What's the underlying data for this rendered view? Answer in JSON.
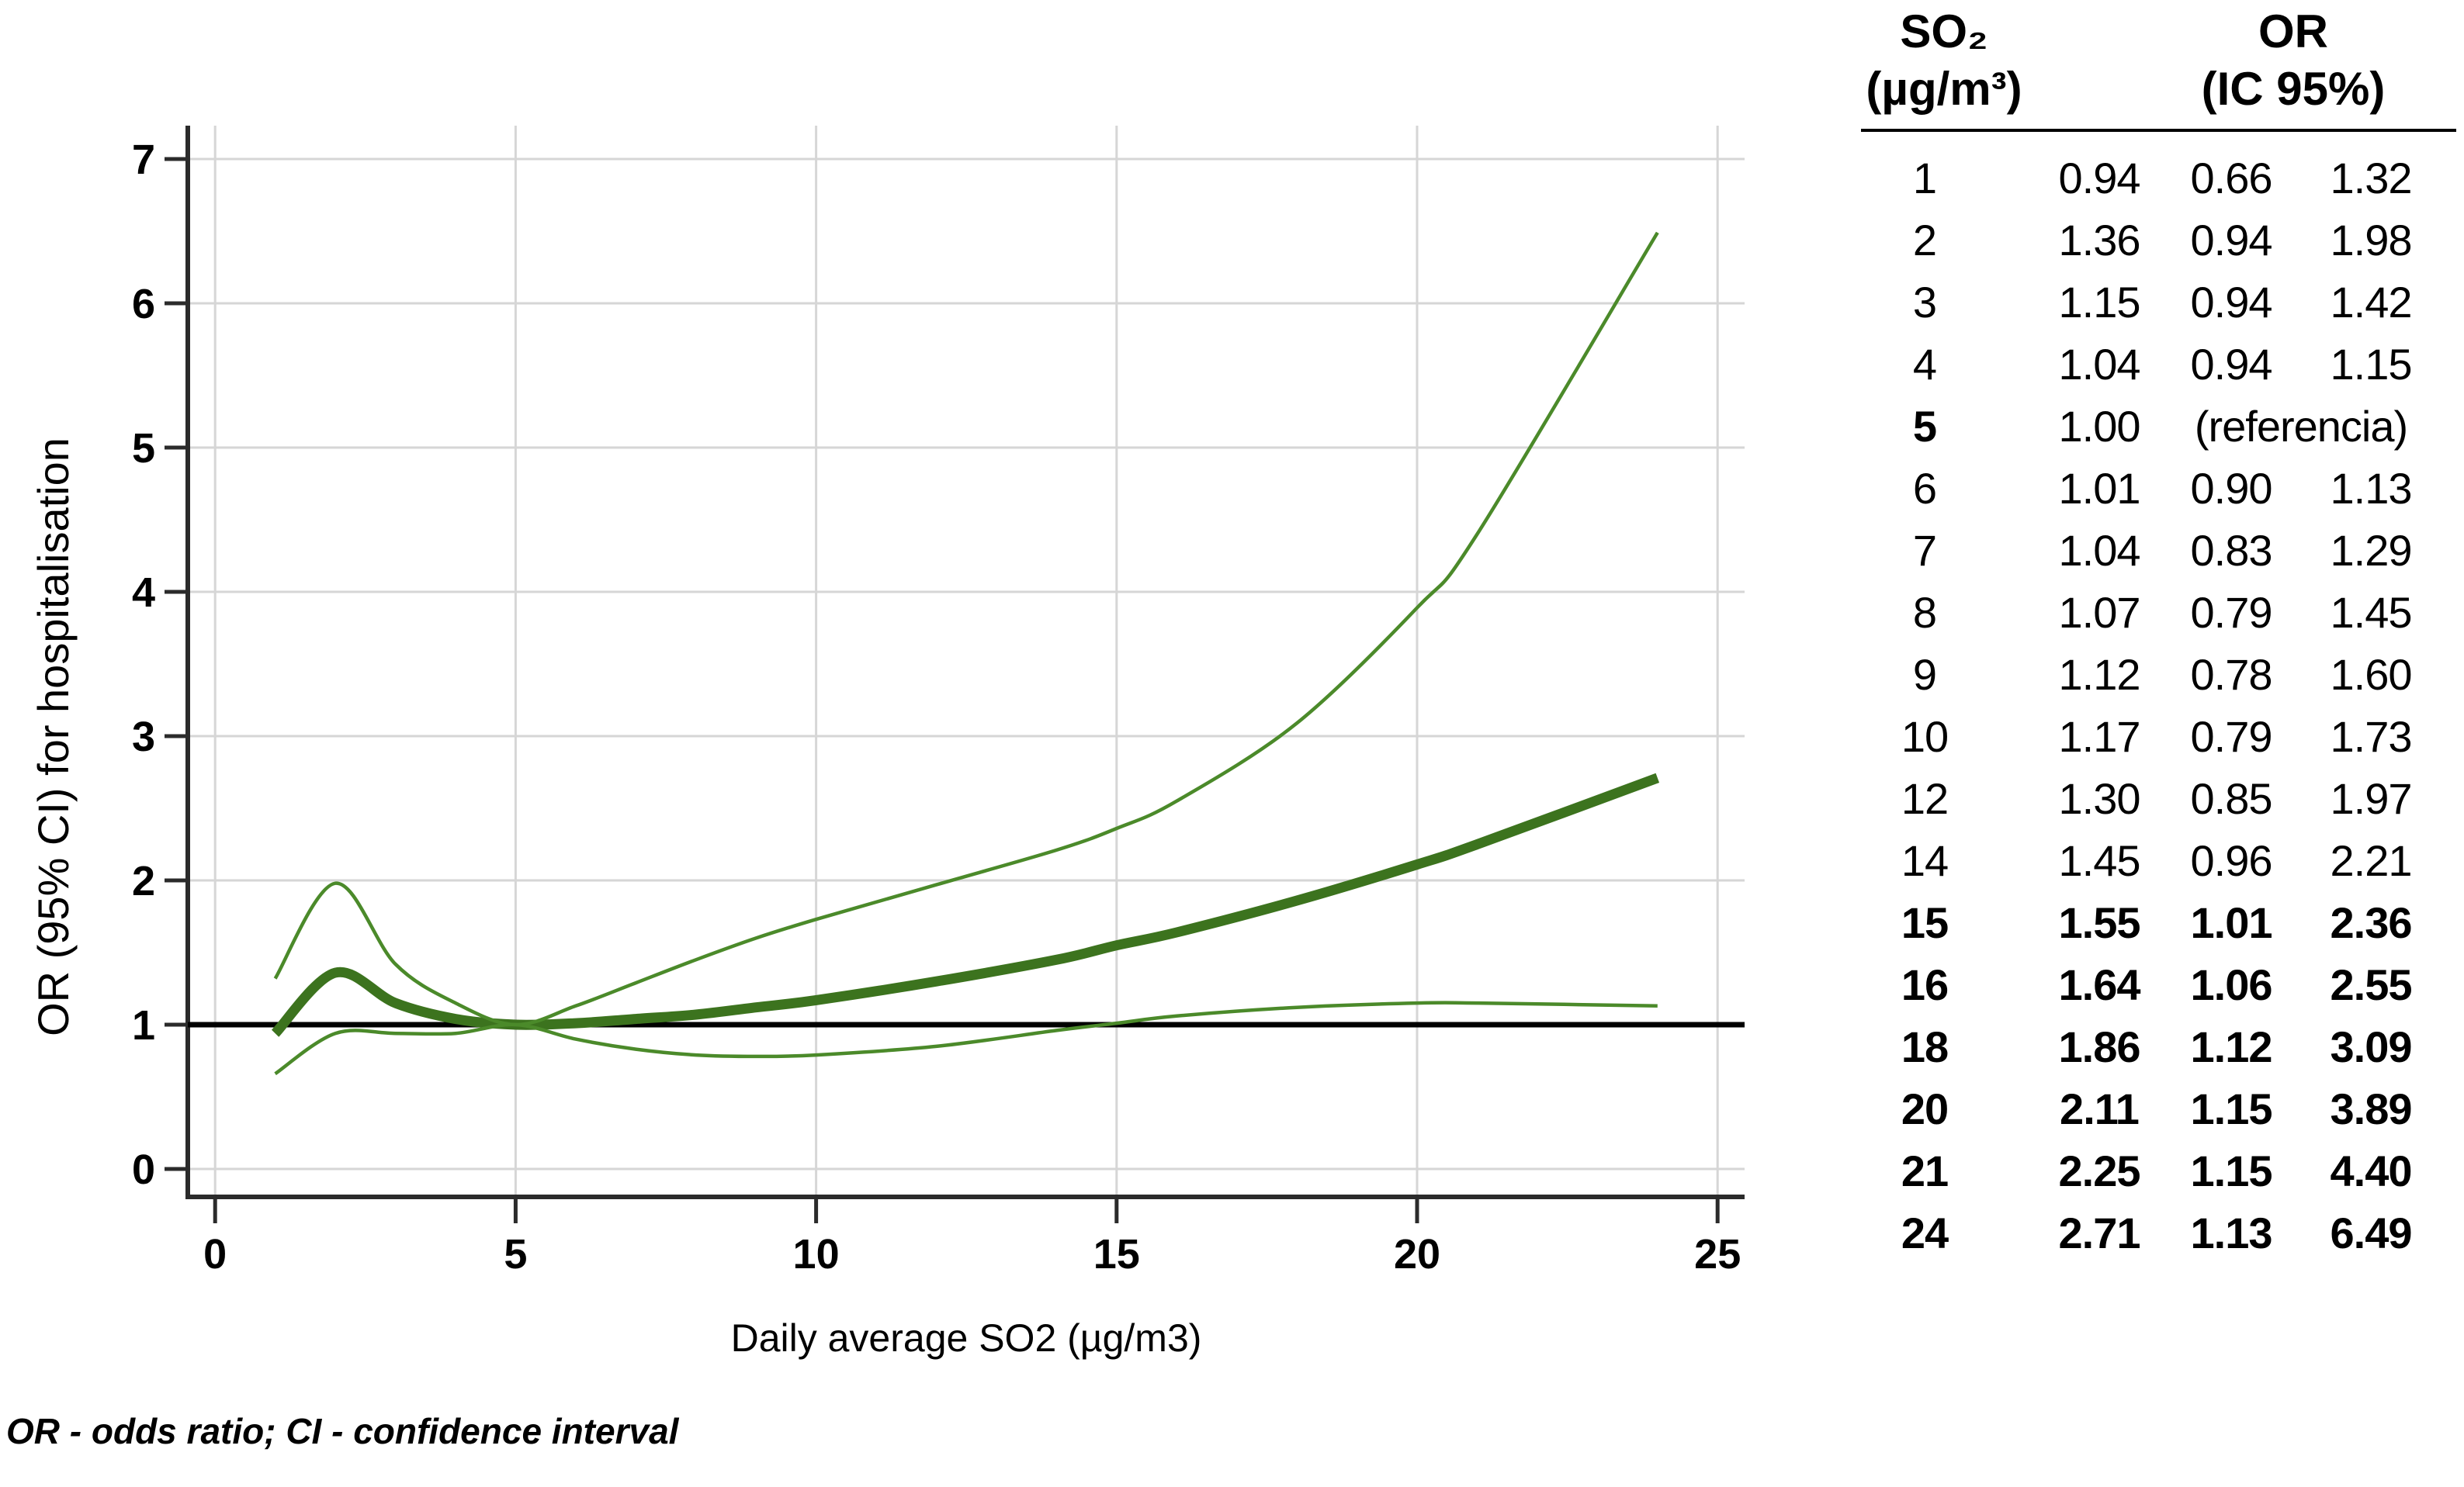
{
  "figure": {
    "footnote": "OR - odds ratio; CI - confidence interval"
  },
  "chart_data": {
    "type": "line",
    "title": "",
    "xlabel": "Daily average SO2 (µg/m3)",
    "ylabel": "OR (95% CI) for hospitalisation",
    "xlim": [
      0,
      25
    ],
    "ylim": [
      0,
      7
    ],
    "x_ticks": [
      0,
      5,
      10,
      15,
      20,
      25
    ],
    "y_ticks": [
      0,
      1,
      2,
      3,
      4,
      5,
      6,
      7
    ],
    "grid": true,
    "reference_line_y": 1,
    "colors": {
      "curve_main": "#3c731e",
      "curve_ci": "#4b8a2a",
      "grid": "#d6d6d6",
      "axis": "#2b2b2b",
      "reference": "#000000"
    },
    "x": [
      1,
      2,
      3,
      4,
      5,
      6,
      7,
      8,
      9,
      10,
      12,
      14,
      15,
      16,
      18,
      20,
      21,
      24
    ],
    "series": [
      {
        "name": "OR estimate",
        "style": "thick",
        "values": [
          0.94,
          1.36,
          1.15,
          1.04,
          1.0,
          1.01,
          1.04,
          1.07,
          1.12,
          1.17,
          1.3,
          1.45,
          1.55,
          1.64,
          1.86,
          2.11,
          2.25,
          2.71
        ]
      },
      {
        "name": "upper 95% CI",
        "style": "thin",
        "values": [
          1.32,
          1.98,
          1.42,
          1.15,
          1.0,
          1.13,
          1.29,
          1.45,
          1.6,
          1.73,
          1.97,
          2.21,
          2.36,
          2.55,
          3.09,
          3.89,
          4.4,
          6.49
        ]
      },
      {
        "name": "lower 95% CI",
        "style": "thin",
        "values": [
          0.66,
          0.94,
          0.94,
          0.94,
          1.0,
          0.9,
          0.83,
          0.79,
          0.78,
          0.79,
          0.85,
          0.96,
          1.01,
          1.06,
          1.12,
          1.15,
          1.15,
          1.13
        ]
      }
    ]
  },
  "table": {
    "header": {
      "so2_line1": "SO₂",
      "so2_line2": "(µg/m³)",
      "or_line1": "OR",
      "or_line2": "(IC 95%)"
    },
    "rows": [
      {
        "so2": "1",
        "or": "0.94",
        "lo": "0.66",
        "hi": "1.32",
        "bold": "none"
      },
      {
        "so2": "2",
        "or": "1.36",
        "lo": "0.94",
        "hi": "1.98",
        "bold": "none"
      },
      {
        "so2": "3",
        "or": "1.15",
        "lo": "0.94",
        "hi": "1.42",
        "bold": "none"
      },
      {
        "so2": "4",
        "or": "1.04",
        "lo": "0.94",
        "hi": "1.15",
        "bold": "none"
      },
      {
        "so2": "5",
        "or": "1.00",
        "ref": "(referencia)",
        "bold": "label"
      },
      {
        "so2": "6",
        "or": "1.01",
        "lo": "0.90",
        "hi": "1.13",
        "bold": "none"
      },
      {
        "so2": "7",
        "or": "1.04",
        "lo": "0.83",
        "hi": "1.29",
        "bold": "none"
      },
      {
        "so2": "8",
        "or": "1.07",
        "lo": "0.79",
        "hi": "1.45",
        "bold": "none"
      },
      {
        "so2": "9",
        "or": "1.12",
        "lo": "0.78",
        "hi": "1.60",
        "bold": "none"
      },
      {
        "so2": "10",
        "or": "1.17",
        "lo": "0.79",
        "hi": "1.73",
        "bold": "none"
      },
      {
        "so2": "12",
        "or": "1.30",
        "lo": "0.85",
        "hi": "1.97",
        "bold": "none"
      },
      {
        "so2": "14",
        "or": "1.45",
        "lo": "0.96",
        "hi": "2.21",
        "bold": "none"
      },
      {
        "so2": "15",
        "or": "1.55",
        "lo": "1.01",
        "hi": "2.36",
        "bold": "all"
      },
      {
        "so2": "16",
        "or": "1.64",
        "lo": "1.06",
        "hi": "2.55",
        "bold": "all"
      },
      {
        "so2": "18",
        "or": "1.86",
        "lo": "1.12",
        "hi": "3.09",
        "bold": "all"
      },
      {
        "so2": "20",
        "or": "2.11",
        "lo": "1.15",
        "hi": "3.89",
        "bold": "all"
      },
      {
        "so2": "21",
        "or": "2.25",
        "lo": "1.15",
        "hi": "4.40",
        "bold": "all"
      },
      {
        "so2": "24",
        "or": "2.71",
        "lo": "1.13",
        "hi": "6.49",
        "bold": "all"
      }
    ]
  }
}
